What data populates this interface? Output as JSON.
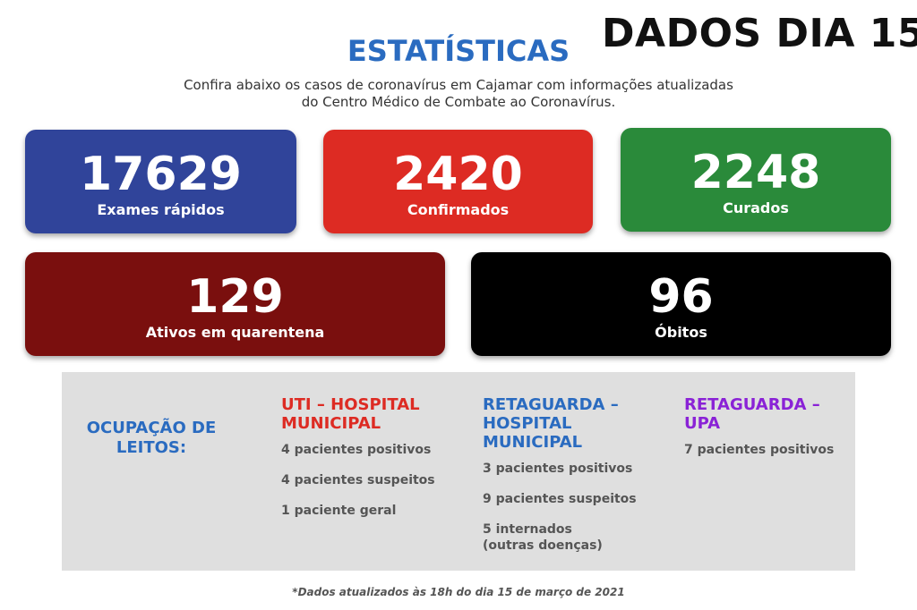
{
  "header": {
    "day_title": "DADOS DIA 15",
    "title": "ESTATÍSTICAS",
    "subtitle_line1": "Confira abaixo os casos de coronavírus em Cajamar com informações atualizadas",
    "subtitle_line2": "do Centro Médico de Combate ao Coronavírus."
  },
  "stats": {
    "exames": {
      "value": "17629",
      "label": "Exames rápidos",
      "color": "#30449a"
    },
    "confirmados": {
      "value": "2420",
      "label": "Confirmados",
      "color": "#dd2b23"
    },
    "curados": {
      "value": "2248",
      "label": "Curados",
      "color": "#2a8a3a"
    },
    "ativos": {
      "value": "129",
      "label": "Ativos em quarentena",
      "color": "#7a0f0e"
    },
    "obitos": {
      "value": "96",
      "label": "Óbitos",
      "color": "#000000"
    }
  },
  "ocupacao": {
    "title_line1": "OCUPAÇÃO DE",
    "title_line2": "LEITOS:",
    "uti": {
      "title_line1": "UTI – HOSPITAL",
      "title_line2": "MUNICIPAL",
      "items": [
        "4 pacientes positivos",
        "4 pacientes suspeitos",
        "1 paciente geral"
      ]
    },
    "retaguarda_hospital": {
      "title_line1": "RETAGUARDA –",
      "title_line2": "HOSPITAL",
      "title_line3": "MUNICIPAL",
      "items": [
        "3 pacientes positivos",
        "9 pacientes suspeitos",
        "5 internados (outras doenças)"
      ]
    },
    "retaguarda_upa": {
      "title_line1": "RETAGUARDA –",
      "title_line2": "UPA",
      "items": [
        "7 pacientes positivos"
      ]
    }
  },
  "footnote": "*Dados atualizados às 18h do dia 15 de março de 2021"
}
